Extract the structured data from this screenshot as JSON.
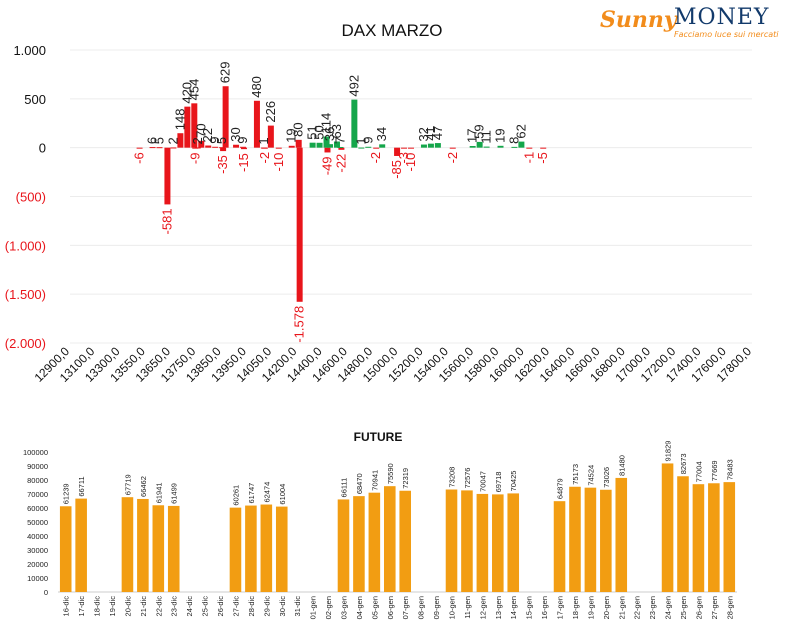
{
  "logo": {
    "brand_left": "Sunny",
    "brand_right": "MONEY",
    "tagline": "Facciamo luce sui mercati"
  },
  "chart_data": [
    {
      "type": "bar",
      "title": "DAX MARZO",
      "ylim": [
        -2000,
        1000
      ],
      "yticks": [
        {
          "value": 1000,
          "label": "1.000"
        },
        {
          "value": 500,
          "label": "500"
        },
        {
          "value": 0,
          "label": "0"
        },
        {
          "value": -500,
          "label": "(500)"
        },
        {
          "value": -1000,
          "label": "(1.000)"
        },
        {
          "value": -1500,
          "label": "(1.500)"
        },
        {
          "value": -2000,
          "label": "(2.000)"
        }
      ],
      "xlim": [
        12900,
        17800
      ],
      "xticks": [
        "12900,0",
        "13100,0",
        "13300,0",
        "13550,0",
        "13650,0",
        "13750,0",
        "13850,0",
        "13950,0",
        "14050,0",
        "14200,0",
        "14400,0",
        "14600,0",
        "14800,0",
        "15000,0",
        "15200,0",
        "15400,0",
        "15600,0",
        "15800,0",
        "16000,0",
        "16200,0",
        "16400,0",
        "16600,0",
        "16800,0",
        "17000,0",
        "17200,0",
        "17400,0",
        "17600,0",
        "17800,0"
      ],
      "colors": {
        "positive_call": "#14a64a",
        "negative_put": "#e8151b",
        "negative_text": "#e8151b",
        "positive_text": "#222222"
      },
      "put_series": [
        {
          "x": 13400,
          "value": -6,
          "label": "-6"
        },
        {
          "x": 13600,
          "value": -581,
          "label": "-581"
        },
        {
          "x": 13800,
          "value": -9,
          "label": "-9"
        },
        {
          "x": 14000,
          "value": -35,
          "label": "-35"
        },
        {
          "x": 14150,
          "value": -15,
          "label": "-15"
        },
        {
          "x": 14300,
          "value": -2,
          "label": "-2"
        },
        {
          "x": 14400,
          "value": -10,
          "label": "-10"
        },
        {
          "x": 14550,
          "value": -1578,
          "label": "-1.578"
        },
        {
          "x": 14750,
          "value": -49,
          "label": "-49"
        },
        {
          "x": 14850,
          "value": -22,
          "label": "-22"
        },
        {
          "x": 15100,
          "value": -2,
          "label": "-2"
        },
        {
          "x": 15250,
          "value": -85,
          "label": "-85"
        },
        {
          "x": 15300,
          "value": -3,
          "label": "-3"
        },
        {
          "x": 15350,
          "value": -10,
          "label": "-10"
        },
        {
          "x": 15650,
          "value": -2,
          "label": "-2"
        },
        {
          "x": 16200,
          "value": -1,
          "label": "-1"
        },
        {
          "x": 16300,
          "value": -5,
          "label": "-5"
        }
      ],
      "call_series": [
        {
          "x": 13450,
          "value": 6,
          "label": "6"
        },
        {
          "x": 13500,
          "value": 5,
          "label": "5"
        },
        {
          "x": 13600,
          "value": 2,
          "label": "2"
        },
        {
          "x": 13650,
          "value": 148,
          "label": "148"
        },
        {
          "x": 13700,
          "value": 420,
          "label": "420"
        },
        {
          "x": 13750,
          "value": 454,
          "label": "454"
        },
        {
          "x": 13775,
          "value": 2,
          "label": "2"
        },
        {
          "x": 13800,
          "value": 70,
          "label": "70"
        },
        {
          "x": 13850,
          "value": 22,
          "label": "22"
        },
        {
          "x": 13900,
          "value": 9,
          "label": "9"
        },
        {
          "x": 13950,
          "value": 5,
          "label": "5"
        },
        {
          "x": 13975,
          "value": 629,
          "label": "629"
        },
        {
          "x": 14050,
          "value": 30,
          "label": "30"
        },
        {
          "x": 14100,
          "value": 9,
          "label": "9"
        },
        {
          "x": 14200,
          "value": 480,
          "label": "480"
        },
        {
          "x": 14250,
          "value": 1,
          "label": "1"
        },
        {
          "x": 14300,
          "value": 226,
          "label": "226"
        },
        {
          "x": 14450,
          "value": 19,
          "label": "19"
        },
        {
          "x": 14500,
          "value": 80,
          "label": "80"
        },
        {
          "x": 14600,
          "value": 51,
          "label": "51"
        },
        {
          "x": 14650,
          "value": 50,
          "label": "50"
        },
        {
          "x": 14700,
          "value": 114,
          "label": "114"
        },
        {
          "x": 14725,
          "value": 36,
          "label": "36"
        },
        {
          "x": 14775,
          "value": 63,
          "label": "63"
        },
        {
          "x": 14800,
          "value": 7,
          "label": "7"
        },
        {
          "x": 14900,
          "value": 492,
          "label": "492"
        },
        {
          "x": 14950,
          "value": 1,
          "label": "1"
        },
        {
          "x": 15000,
          "value": 9,
          "label": "9"
        },
        {
          "x": 15100,
          "value": 34,
          "label": "34"
        },
        {
          "x": 15400,
          "value": 32,
          "label": "32"
        },
        {
          "x": 15450,
          "value": 41,
          "label": "41"
        },
        {
          "x": 15500,
          "value": 47,
          "label": "47"
        },
        {
          "x": 15750,
          "value": 17,
          "label": "17"
        },
        {
          "x": 15800,
          "value": 59,
          "label": "59"
        },
        {
          "x": 15850,
          "value": 11,
          "label": "11"
        },
        {
          "x": 15950,
          "value": 19,
          "label": "19"
        },
        {
          "x": 16050,
          "value": 8,
          "label": "8"
        },
        {
          "x": 16100,
          "value": 62,
          "label": "62"
        }
      ],
      "grid": true
    },
    {
      "type": "bar",
      "title": "FUTURE",
      "ylim": [
        0,
        100000
      ],
      "yticks": [
        0,
        10000,
        20000,
        30000,
        40000,
        50000,
        60000,
        70000,
        80000,
        90000,
        100000
      ],
      "bar_color": "#f29d12",
      "categories": [
        "16-dic",
        "17-dic",
        "18-dic",
        "19-dic",
        "20-dic",
        "21-dic",
        "22-dic",
        "23-dic",
        "24-dic",
        "25-dic",
        "26-dic",
        "27-dic",
        "28-dic",
        "29-dic",
        "30-dic",
        "31-dic",
        "01-gen",
        "02-gen",
        "03-gen",
        "04-gen",
        "05-gen",
        "06-gen",
        "07-gen",
        "08-gen",
        "09-gen",
        "10-gen",
        "11-gen",
        "12-gen",
        "13-gen",
        "14-gen",
        "15-gen",
        "16-gen",
        "17-gen",
        "18-gen",
        "19-gen",
        "20-gen",
        "21-gen",
        "22-gen",
        "23-gen",
        "24-gen",
        "25-gen",
        "26-gen",
        "27-gen",
        "28-gen"
      ],
      "values": [
        61239,
        66711,
        null,
        null,
        67719,
        66462,
        61941,
        61499,
        null,
        null,
        null,
        60261,
        61747,
        62474,
        61004,
        null,
        null,
        null,
        66111,
        68470,
        70941,
        75590,
        72319,
        null,
        null,
        73208,
        72576,
        70047,
        69718,
        70425,
        null,
        null,
        64879,
        75173,
        74524,
        73026,
        81480,
        null,
        null,
        91829,
        82673,
        77004,
        77669,
        78483
      ]
    }
  ]
}
